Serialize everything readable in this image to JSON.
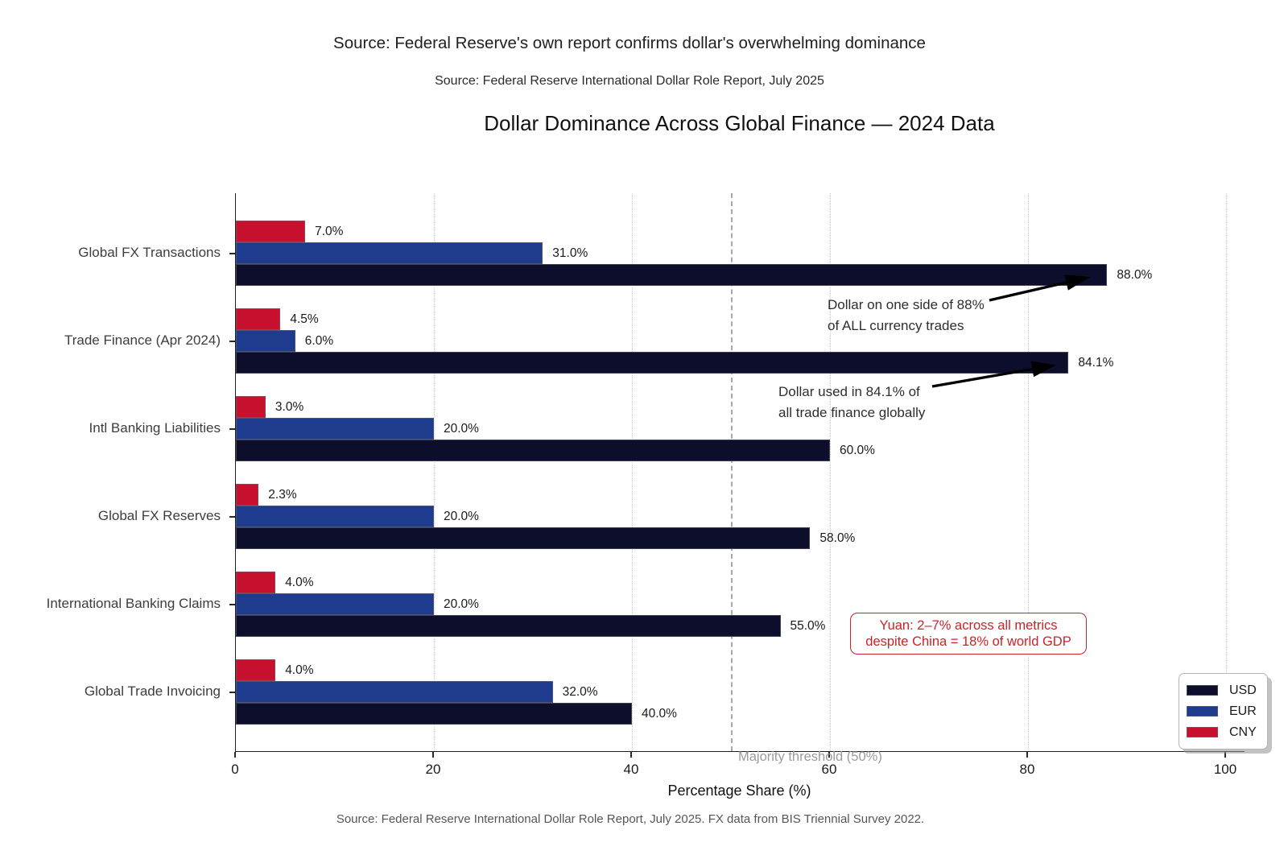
{
  "header": {
    "line1": "Source: Federal Reserve's own report confirms dollar's overwhelming dominance",
    "line2": "Source: Federal Reserve International Dollar Role Report, July 2025"
  },
  "chart_data": {
    "type": "bar",
    "orientation": "horizontal",
    "title": "Dollar Dominance Across Global Finance — 2024 Data",
    "xlabel": "Percentage Share (%)",
    "xlim": [
      0,
      102
    ],
    "xticks": [
      0,
      20,
      40,
      60,
      80,
      100
    ],
    "grid": "vertical dotted gridlines at xticks",
    "bar_label_format": "{value:.1f}%",
    "categories": [
      "Global FX Transactions",
      "Trade Finance (Apr 2024)",
      "Intl Banking Liabilities",
      "Global FX Reserves",
      "International Banking Claims",
      "Global Trade Invoicing"
    ],
    "series": [
      {
        "name": "USD",
        "color": "#0c0e2b",
        "values": [
          88.0,
          84.1,
          60.0,
          58.0,
          55.0,
          40.0
        ]
      },
      {
        "name": "EUR",
        "color": "#1e3b8d",
        "values": [
          31.0,
          6.0,
          20.0,
          20.0,
          20.0,
          32.0
        ]
      },
      {
        "name": "CNY",
        "color": "#c8102f",
        "values": [
          7.0,
          4.5,
          3.0,
          2.3,
          4.0,
          4.0
        ]
      }
    ],
    "threshold_line": {
      "value": 50,
      "label": "Majority threshold (50%)",
      "color": "#a8a8a8",
      "style": "dashed"
    },
    "legend": {
      "position": "lower right",
      "entries": [
        "USD",
        "EUR",
        "CNY"
      ]
    },
    "annotations": {
      "fx": {
        "line1": "Dollar on one side of 88%",
        "line2": "of ALL currency trades",
        "points_to": "USD Global FX Transactions bar (88.0%)"
      },
      "trade": {
        "line1": "Dollar used in 84.1% of",
        "line2": "all trade finance globally",
        "points_to": "USD Trade Finance bar (84.1%)"
      },
      "yuan_box": {
        "line1": "Yuan: 2–7% across all metrics",
        "line2": "despite China = 18% of world GDP",
        "color": "#cd2129"
      }
    }
  },
  "footer": "Source: Federal Reserve International Dollar Role Report, July 2025. FX data from BIS Triennial Survey 2022."
}
